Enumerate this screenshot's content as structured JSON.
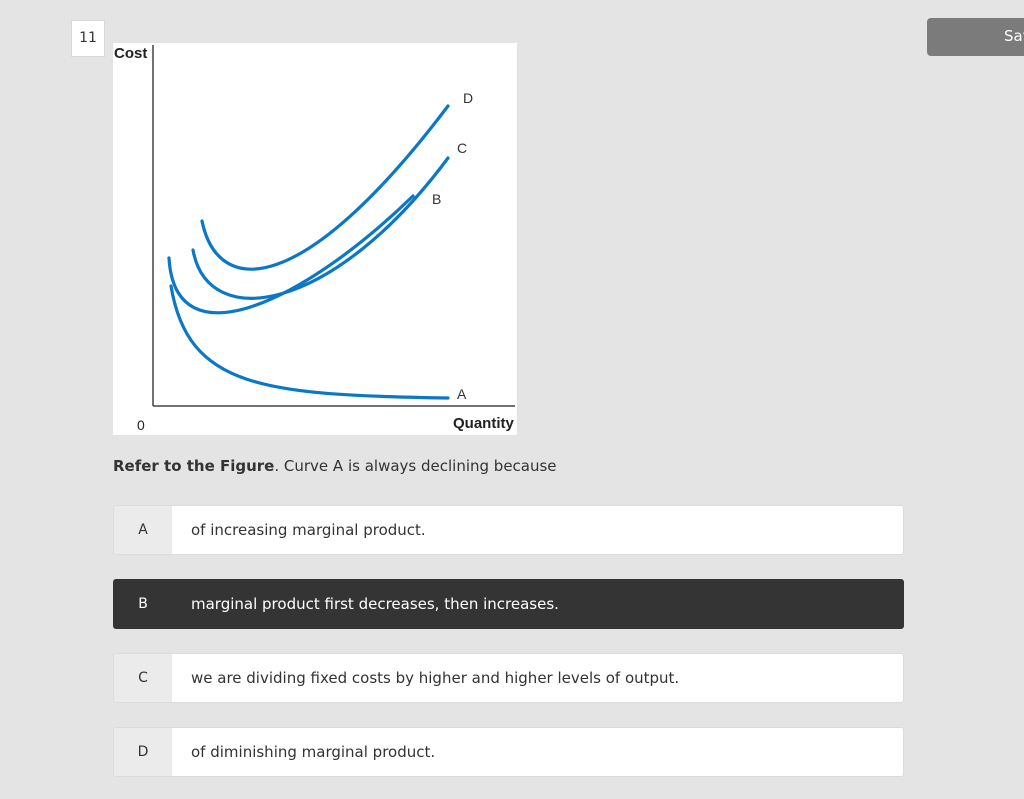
{
  "question": {
    "number": "11",
    "stem_bold": "Refer to the Figure",
    "stem_rest": ". Curve A is always declining because"
  },
  "toolbar": {
    "save_label": "Save"
  },
  "figure": {
    "y_axis_label": "Cost",
    "x_axis_label": "Quantity",
    "origin_label": "0",
    "curve_labels": {
      "a": "A",
      "b": "B",
      "c": "C",
      "d": "D"
    },
    "curve_color": "#0c77c4"
  },
  "options": [
    {
      "letter": "A",
      "text": "of increasing marginal product.",
      "selected": false
    },
    {
      "letter": "B",
      "text": "marginal product first decreases, then increases.",
      "selected": true
    },
    {
      "letter": "C",
      "text": "we are dividing fixed costs by higher and higher levels of output.",
      "selected": false
    },
    {
      "letter": "D",
      "text": "of diminishing marginal product.",
      "selected": false
    }
  ],
  "colors": {
    "background": "#e4e4e4",
    "selected_option": "#343434",
    "save_button": "#7b7b7b"
  }
}
